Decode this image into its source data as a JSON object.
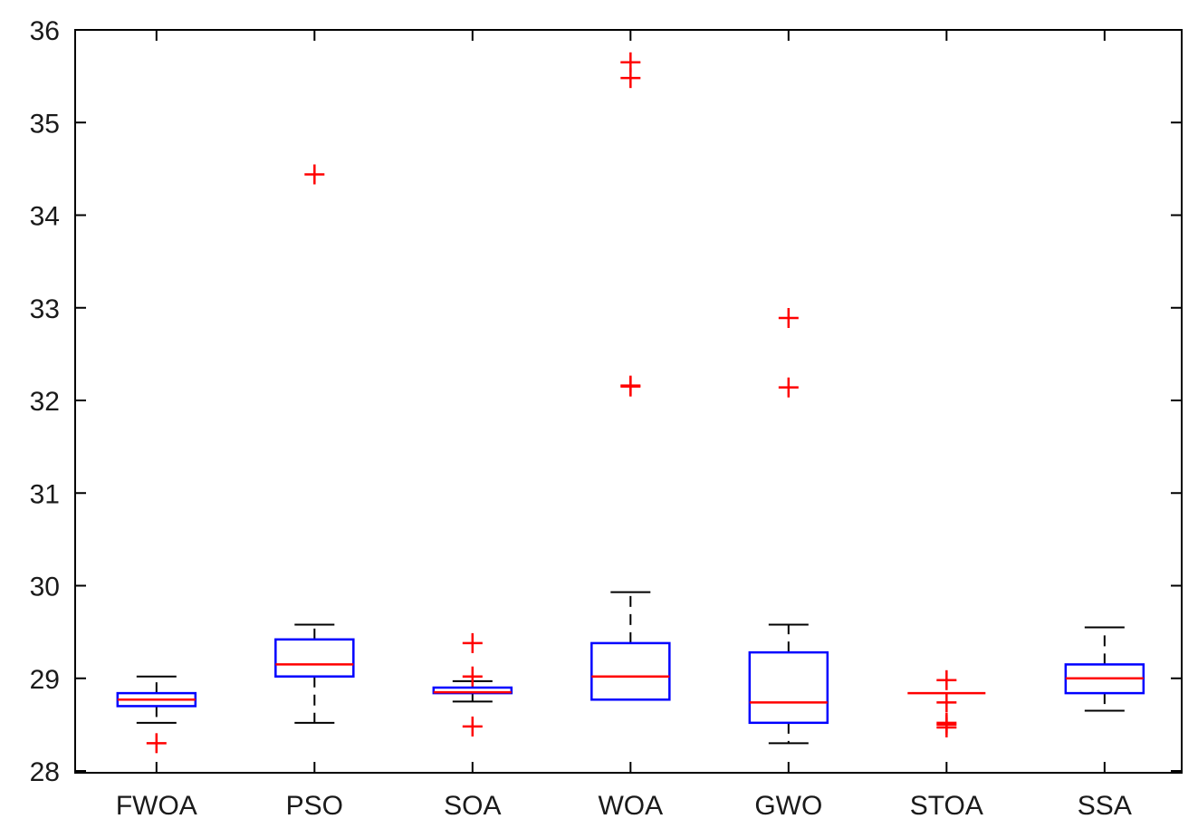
{
  "chart_data": {
    "type": "boxplot",
    "title": "",
    "xlabel": "",
    "ylabel": "",
    "ylim": [
      28,
      36
    ],
    "yticks": [
      28,
      29,
      30,
      31,
      32,
      33,
      34,
      35,
      36
    ],
    "grid": false,
    "colors": {
      "box": "#0000ff",
      "median": "#ff0000",
      "whisker": "#000000",
      "outlier": "#ff0000",
      "axis": "#000000"
    },
    "categories": [
      "FWOA",
      "PSO",
      "SOA",
      "WOA",
      "GWO",
      "STOA",
      "SSA"
    ],
    "boxes": [
      {
        "name": "FWOA",
        "whisker_low": 28.52,
        "q1": 28.7,
        "median": 28.77,
        "q3": 28.84,
        "whisker_high": 29.02,
        "outliers": [
          28.3
        ]
      },
      {
        "name": "PSO",
        "whisker_low": 28.52,
        "q1": 29.02,
        "median": 29.15,
        "q3": 29.42,
        "whisker_high": 29.58,
        "outliers": [
          34.44
        ]
      },
      {
        "name": "SOA",
        "whisker_low": 28.75,
        "q1": 28.84,
        "median": 28.85,
        "q3": 28.9,
        "whisker_high": 28.97,
        "outliers": [
          29.38,
          29.02,
          28.48
        ]
      },
      {
        "name": "WOA",
        "whisker_low": 28.77,
        "q1": 28.77,
        "median": 29.02,
        "q3": 29.38,
        "whisker_high": 29.93,
        "outliers": [
          35.65,
          35.48,
          32.15,
          32.16
        ]
      },
      {
        "name": "GWO",
        "whisker_low": 28.3,
        "q1": 28.52,
        "median": 28.74,
        "q3": 29.28,
        "whisker_high": 29.58,
        "outliers": [
          32.89,
          32.14
        ]
      },
      {
        "name": "STOA",
        "whisker_low": 28.84,
        "q1": 28.84,
        "median": 28.84,
        "q3": 28.84,
        "whisker_high": 28.84,
        "outliers": [
          28.98,
          28.74,
          28.52,
          28.5,
          28.47
        ]
      },
      {
        "name": "SSA",
        "whisker_low": 28.65,
        "q1": 28.84,
        "median": 29.0,
        "q3": 29.15,
        "whisker_high": 29.55,
        "outliers": []
      }
    ]
  }
}
